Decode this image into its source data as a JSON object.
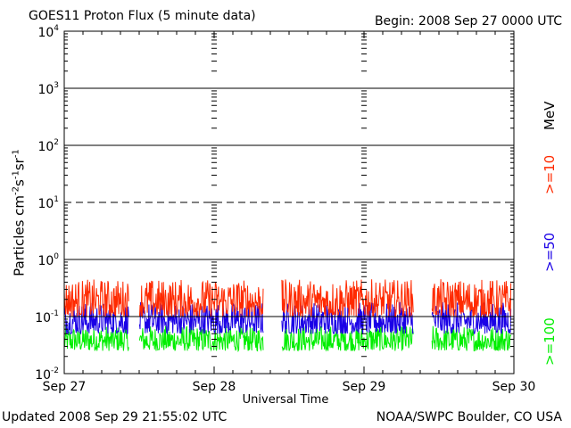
{
  "header": {
    "title": "GOES11 Proton Flux (5 minute data)",
    "begin": "Begin: 2008 Sep 27 0000 UTC"
  },
  "footer": {
    "updated": "Updated 2008 Sep 29 21:55:02 UTC",
    "credit": "NOAA/SWPC Boulder, CO USA"
  },
  "chart_data": {
    "type": "line",
    "title": "GOES11 Proton Flux (5 minute data)",
    "xlabel": "Universal Time",
    "ylabel": "Particles cm-2s-1sr-1",
    "yscale": "log",
    "ylim": [
      0.01,
      10000
    ],
    "yticks": [
      {
        "base": "10",
        "exp": "4"
      },
      {
        "base": "10",
        "exp": "3"
      },
      {
        "base": "10",
        "exp": "2"
      },
      {
        "base": "10",
        "exp": "1"
      },
      {
        "base": "10",
        "exp": "0"
      },
      {
        "base": "10",
        "exp": "-1"
      },
      {
        "base": "10",
        "exp": "-2"
      }
    ],
    "x_tick_labels": [
      "Sep 27",
      "Sep 28",
      "Sep 29",
      "Sep 30"
    ],
    "xlim_days": [
      0,
      3
    ],
    "data_gaps_days": [
      [
        0.43,
        0.5
      ],
      [
        1.33,
        1.45
      ],
      [
        2.33,
        2.45
      ]
    ],
    "series": [
      {
        "name": ">=10 MeV",
        "label": ">=10",
        "color": "#ff2a00",
        "typical_min": 0.1,
        "typical_max": 0.45
      },
      {
        "name": ">=50 MeV",
        "label": ">=50",
        "color": "#1a00e6",
        "typical_min": 0.05,
        "typical_max": 0.18
      },
      {
        "name": ">=100 MeV",
        "label": ">=100",
        "color": "#00ee00",
        "typical_min": 0.025,
        "typical_max": 0.07
      }
    ],
    "legend_unit": "MeV",
    "reference_lines": [
      {
        "value": 10,
        "style": "dashed"
      },
      {
        "value": 1,
        "style": "solid"
      },
      {
        "value": 0.1,
        "style": "solid"
      }
    ]
  }
}
